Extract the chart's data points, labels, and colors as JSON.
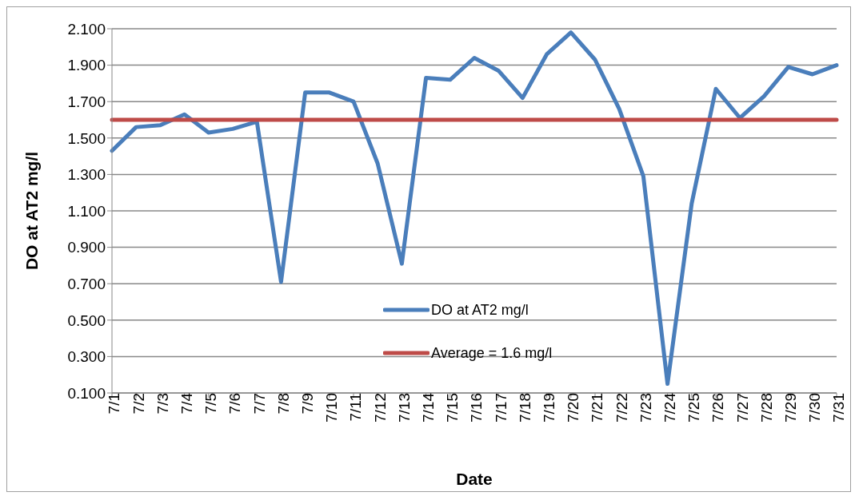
{
  "chart_data": {
    "type": "line",
    "xlabel": "Date",
    "ylabel": "DO at AT2 mg/l",
    "categories": [
      "7/1",
      "7/2",
      "7/3",
      "7/4",
      "7/5",
      "7/6",
      "7/7",
      "7/8",
      "7/9",
      "7/10",
      "7/11",
      "7/12",
      "7/13",
      "7/14",
      "7/15",
      "7/16",
      "7/17",
      "7/18",
      "7/19",
      "7/20",
      "7/21",
      "7/22",
      "7/23",
      "7/24",
      "7/25",
      "7/26",
      "7/27",
      "7/28",
      "7/29",
      "7/30",
      "7/31"
    ],
    "series": [
      {
        "name": "DO at AT2 mg/l",
        "color": "#4a7ebb",
        "values": [
          1.43,
          1.56,
          1.57,
          1.63,
          1.53,
          1.55,
          1.59,
          0.71,
          1.75,
          1.75,
          1.7,
          1.36,
          0.81,
          1.83,
          1.82,
          1.94,
          1.87,
          1.72,
          1.96,
          2.08,
          1.93,
          1.66,
          1.29,
          0.15,
          1.14,
          1.77,
          1.61,
          1.73,
          1.89,
          1.85,
          1.9
        ]
      },
      {
        "name": "Average = 1.6 mg/l",
        "color": "#be4b48",
        "values": [
          1.6,
          1.6,
          1.6,
          1.6,
          1.6,
          1.6,
          1.6,
          1.6,
          1.6,
          1.6,
          1.6,
          1.6,
          1.6,
          1.6,
          1.6,
          1.6,
          1.6,
          1.6,
          1.6,
          1.6,
          1.6,
          1.6,
          1.6,
          1.6,
          1.6,
          1.6,
          1.6,
          1.6,
          1.6,
          1.6,
          1.6
        ]
      }
    ],
    "ylim": [
      0.1,
      2.1
    ],
    "yticks": [
      {
        "value": 0.1,
        "label": "0.100"
      },
      {
        "value": 0.3,
        "label": "0.300"
      },
      {
        "value": 0.5,
        "label": "0.500"
      },
      {
        "value": 0.7,
        "label": "0.700"
      },
      {
        "value": 0.9,
        "label": "0.900"
      },
      {
        "value": 1.1,
        "label": "1.100"
      },
      {
        "value": 1.3,
        "label": "1.300"
      },
      {
        "value": 1.5,
        "label": "1.500"
      },
      {
        "value": 1.7,
        "label": "1.700"
      },
      {
        "value": 1.9,
        "label": "1.900"
      },
      {
        "value": 2.1,
        "label": "2.100"
      }
    ],
    "grid": "y",
    "legend": "bottom",
    "marker": "none",
    "line_style": "solid"
  }
}
